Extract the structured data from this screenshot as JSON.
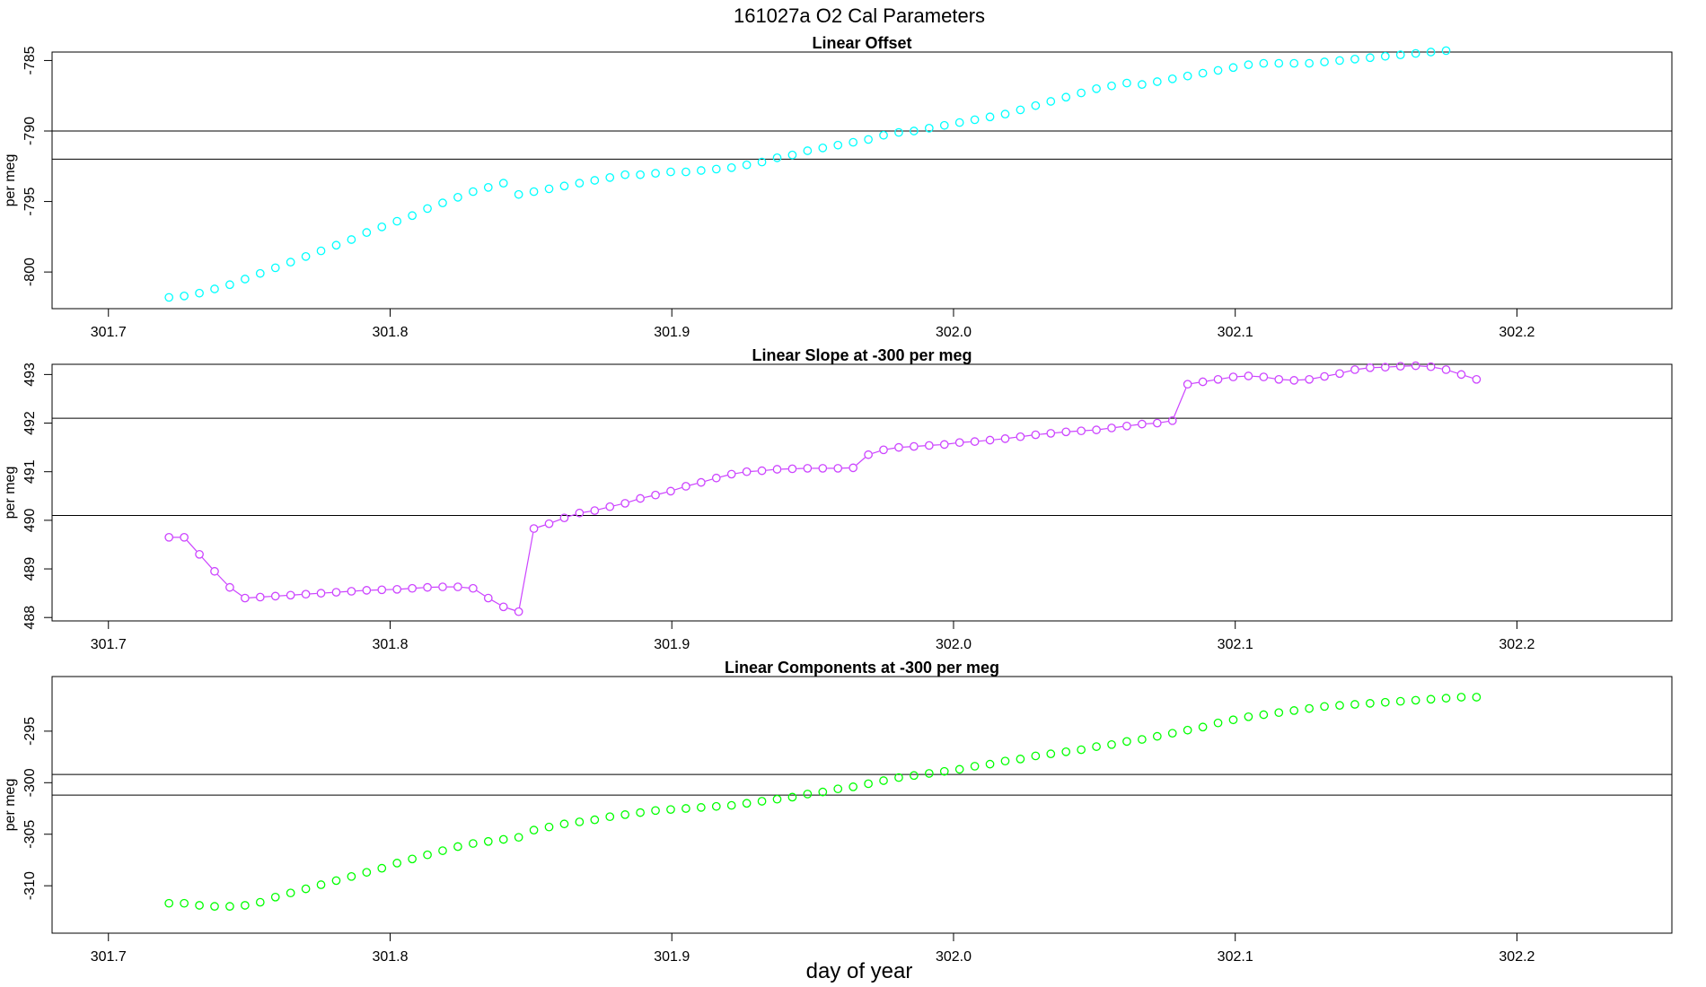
{
  "figure": {
    "title": "161027a   O2 Cal Parameters",
    "xlabel": "day of year"
  },
  "chart_data": [
    {
      "type": "scatter",
      "title": "Linear Offset",
      "ylabel": "per meg",
      "color": "#00ffff",
      "xlim": [
        301.68,
        302.255
      ],
      "ylim": [
        -802.6,
        -784.4
      ],
      "x_ticks": [
        301.7,
        301.8,
        301.9,
        302.0,
        302.1,
        302.2
      ],
      "x_tick_labels": [
        "301.7",
        "301.8",
        "301.9",
        "302.0",
        "302.1",
        "302.2"
      ],
      "y_ticks": [
        -785,
        -790,
        -795,
        -800
      ],
      "y_tick_labels": [
        "-785",
        "-790",
        "-795",
        "-800"
      ],
      "hlines": [
        -790.0,
        -792.0
      ],
      "x_start": 301.7215,
      "x_step": 0.005397,
      "values": [
        -801.8,
        -801.7,
        -801.5,
        -801.2,
        -800.9,
        -800.5,
        -800.1,
        -799.7,
        -799.3,
        -798.9,
        -798.5,
        -798.1,
        -797.7,
        -797.2,
        -796.8,
        -796.4,
        -796.0,
        -795.5,
        -795.1,
        -794.7,
        -794.3,
        -794.0,
        -793.7,
        -794.5,
        -794.3,
        -794.1,
        -793.9,
        -793.7,
        -793.5,
        -793.3,
        -793.1,
        -793.1,
        -793.0,
        -792.9,
        -792.9,
        -792.8,
        -792.7,
        -792.6,
        -792.4,
        -792.2,
        -791.9,
        -791.7,
        -791.4,
        -791.2,
        -791.0,
        -790.8,
        -790.6,
        -790.3,
        -790.1,
        -790.0,
        -789.8,
        -789.6,
        -789.4,
        -789.2,
        -789.0,
        -788.8,
        -788.5,
        -788.2,
        -787.9,
        -787.6,
        -787.3,
        -787.0,
        -786.8,
        -786.6,
        -786.7,
        -786.5,
        -786.3,
        -786.1,
        -785.9,
        -785.7,
        -785.5,
        -785.3,
        -785.2,
        -785.2,
        -785.2,
        -785.2,
        -785.1,
        -785.0,
        -784.9,
        -784.8,
        -784.7,
        -784.6,
        -784.5,
        -784.4,
        -784.3
      ]
    },
    {
      "type": "line",
      "title": "Linear Slope at -300 per meg",
      "ylabel": "per meg",
      "color": "#cc44ff",
      "xlim": [
        301.68,
        302.255
      ],
      "ylim": [
        487.93,
        493.21
      ],
      "x_ticks": [
        301.7,
        301.8,
        301.9,
        302.0,
        302.1,
        302.2
      ],
      "x_tick_labels": [
        "301.7",
        "301.8",
        "301.9",
        "302.0",
        "302.1",
        "302.2"
      ],
      "y_ticks": [
        488,
        489,
        490,
        491,
        492,
        493
      ],
      "y_tick_labels": [
        "488",
        "489",
        "490",
        "491",
        "492",
        "493"
      ],
      "hlines": [
        492.1,
        490.1
      ],
      "x_start": 301.7215,
      "x_step": 0.005397,
      "values": [
        489.65,
        489.65,
        489.3,
        488.95,
        488.62,
        488.4,
        488.42,
        488.44,
        488.46,
        488.48,
        488.5,
        488.52,
        488.54,
        488.56,
        488.57,
        488.58,
        488.6,
        488.62,
        488.63,
        488.63,
        488.6,
        488.4,
        488.22,
        488.12,
        489.83,
        489.93,
        490.05,
        490.15,
        490.2,
        490.28,
        490.35,
        490.45,
        490.52,
        490.6,
        490.7,
        490.78,
        490.87,
        490.95,
        491.0,
        491.02,
        491.05,
        491.06,
        491.07,
        491.07,
        491.07,
        491.08,
        491.35,
        491.45,
        491.5,
        491.52,
        491.54,
        491.56,
        491.6,
        491.62,
        491.65,
        491.68,
        491.72,
        491.76,
        491.79,
        491.82,
        491.84,
        491.86,
        491.9,
        491.94,
        491.98,
        492.0,
        492.05,
        492.8,
        492.85,
        492.9,
        492.95,
        492.97,
        492.95,
        492.9,
        492.88,
        492.9,
        492.96,
        493.02,
        493.1,
        493.14,
        493.15,
        493.17,
        493.18,
        493.16,
        493.1,
        493.0,
        492.9
      ]
    },
    {
      "type": "scatter",
      "title": "Linear Components at -300 per meg",
      "ylabel": "per meg",
      "color": "#00ff00",
      "xlim": [
        301.68,
        302.255
      ],
      "ylim": [
        -314.6,
        -289.7
      ],
      "x_ticks": [
        301.7,
        301.8,
        301.9,
        302.0,
        302.1,
        302.2
      ],
      "x_tick_labels": [
        "301.7",
        "301.8",
        "301.9",
        "302.0",
        "302.1",
        "302.2"
      ],
      "y_ticks": [
        -295,
        -300,
        -305,
        -310
      ],
      "y_tick_labels": [
        "-295",
        "-300",
        "-305",
        "-310"
      ],
      "hlines": [
        -299.2,
        -301.2
      ],
      "x_start": 301.7215,
      "x_step": 0.005397,
      "values": [
        -311.7,
        -311.7,
        -311.9,
        -312.0,
        -312.0,
        -311.9,
        -311.6,
        -311.1,
        -310.7,
        -310.3,
        -309.9,
        -309.5,
        -309.1,
        -308.7,
        -308.3,
        -307.8,
        -307.4,
        -307.0,
        -306.6,
        -306.2,
        -305.9,
        -305.7,
        -305.5,
        -305.3,
        -304.6,
        -304.3,
        -304.0,
        -303.8,
        -303.6,
        -303.3,
        -303.1,
        -302.9,
        -302.7,
        -302.6,
        -302.5,
        -302.4,
        -302.3,
        -302.2,
        -302.0,
        -301.8,
        -301.6,
        -301.4,
        -301.1,
        -300.9,
        -300.6,
        -300.4,
        -300.1,
        -299.8,
        -299.5,
        -299.3,
        -299.1,
        -298.9,
        -298.7,
        -298.4,
        -298.2,
        -297.9,
        -297.7,
        -297.4,
        -297.2,
        -297.0,
        -296.8,
        -296.5,
        -296.3,
        -296.0,
        -295.8,
        -295.5,
        -295.2,
        -294.9,
        -294.6,
        -294.2,
        -293.9,
        -293.6,
        -293.4,
        -293.2,
        -293.0,
        -292.8,
        -292.6,
        -292.5,
        -292.4,
        -292.3,
        -292.2,
        -292.1,
        -292.0,
        -291.9,
        -291.8,
        -291.7,
        -291.7
      ]
    }
  ]
}
